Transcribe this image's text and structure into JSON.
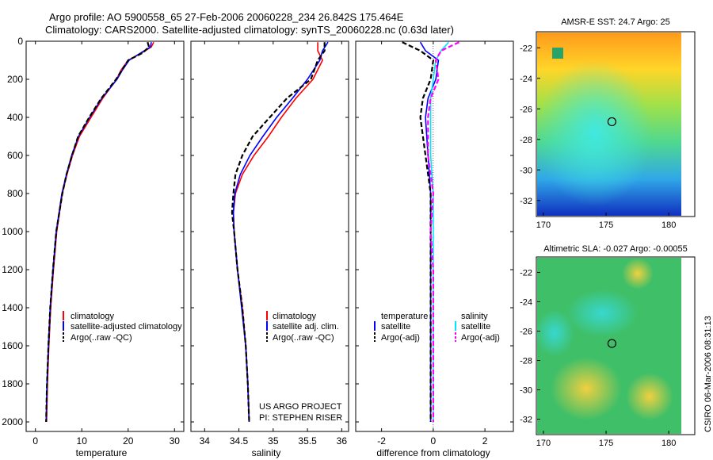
{
  "header": {
    "line1": "Argo profile: AO 5900558_65 27-Feb-2006 20060228_234 26.842S 175.464E",
    "line2": "Climatology: CARS2000. Satellite-adjusted climatology: synTS_20060228.nc (0.63d later)"
  },
  "side_stamp": "CSIRO 06-Mar-2006 08:31:13",
  "project_note": [
    "US ARGO PROJECT",
    "PI: STEPHEN RISER"
  ],
  "colors": {
    "climatology": "#ff0000",
    "satellite": "#0000ff",
    "argo": "#000000",
    "salinity_satellite": "#00e5ff",
    "salinity_argo": "#ff00ff"
  },
  "chart_data": [
    {
      "type": "line",
      "xlabel": "temperature",
      "xlim": [
        -2,
        32
      ],
      "ylim": [
        2050,
        0
      ],
      "xticks": [
        0,
        10,
        20,
        30
      ],
      "yticks": [
        0,
        200,
        400,
        600,
        800,
        1000,
        1200,
        1400,
        1600,
        1800,
        2000
      ],
      "legend": [
        "climatology",
        "satellite-adjusted climatology",
        "Argo(..raw -QC)"
      ],
      "series": [
        {
          "name": "climatology",
          "color": "#ff0000",
          "dash": "solid",
          "depth": [
            5,
            30,
            60,
            100,
            150,
            200,
            300,
            400,
            500,
            600,
            700,
            800,
            1000,
            1200,
            1400,
            1600,
            1800,
            2000
          ],
          "values": [
            25.5,
            25.0,
            23.0,
            20.0,
            18.5,
            17.5,
            14.5,
            12.0,
            9.5,
            8.0,
            6.8,
            5.8,
            4.6,
            3.9,
            3.3,
            2.9,
            2.6,
            2.4
          ]
        },
        {
          "name": "satellite-adjusted climatology",
          "color": "#0000ff",
          "dash": "solid",
          "depth": [
            5,
            30,
            60,
            100,
            150,
            200,
            300,
            400,
            500,
            600,
            700,
            800,
            1000,
            1200,
            1400,
            1600,
            1800,
            2000
          ],
          "values": [
            25.0,
            24.8,
            22.8,
            20.2,
            18.8,
            17.6,
            14.3,
            11.7,
            9.3,
            7.8,
            6.7,
            5.7,
            4.5,
            3.8,
            3.2,
            2.8,
            2.5,
            2.3
          ]
        },
        {
          "name": "Argo(..raw -QC)",
          "color": "#000000",
          "dash": "dashed",
          "depth": [
            5,
            30,
            60,
            100,
            150,
            200,
            300,
            400,
            500,
            600,
            700,
            800,
            1000,
            1200,
            1400,
            1600,
            1800,
            2000
          ],
          "values": [
            24.2,
            24.5,
            23.2,
            20.0,
            18.7,
            17.4,
            14.2,
            11.6,
            9.2,
            7.9,
            6.7,
            5.8,
            4.5,
            3.8,
            3.2,
            2.8,
            2.5,
            2.3
          ]
        }
      ]
    },
    {
      "type": "line",
      "xlabel": "salinity",
      "xlim": [
        33.8,
        36.1
      ],
      "ylim": [
        2050,
        0
      ],
      "xticks": [
        34,
        34.5,
        35,
        35.5,
        36
      ],
      "legend": [
        "climatology",
        "satellite adj. clim.",
        "Argo(..raw -QC)"
      ],
      "series": [
        {
          "name": "climatology",
          "color": "#ff0000",
          "dash": "solid",
          "depth": [
            5,
            50,
            100,
            200,
            300,
            400,
            500,
            600,
            700,
            800,
            900,
            1000,
            1200,
            1400,
            1600,
            1800,
            2000
          ],
          "values": [
            35.65,
            35.65,
            35.72,
            35.58,
            35.33,
            35.12,
            34.93,
            34.72,
            34.55,
            34.45,
            34.42,
            34.43,
            34.48,
            34.55,
            34.6,
            34.63,
            34.65
          ]
        },
        {
          "name": "satellite adj. clim.",
          "color": "#0000ff",
          "dash": "solid",
          "depth": [
            5,
            50,
            100,
            200,
            300,
            400,
            500,
            600,
            700,
            800,
            900,
            1000,
            1200,
            1400,
            1600,
            1800,
            2000
          ],
          "values": [
            35.8,
            35.72,
            35.68,
            35.5,
            35.28,
            35.05,
            34.85,
            34.66,
            34.52,
            34.44,
            34.42,
            34.43,
            34.48,
            34.54,
            34.6,
            34.63,
            34.65
          ]
        },
        {
          "name": "Argo(..raw -QC)",
          "color": "#000000",
          "dash": "dashed",
          "depth": [
            5,
            50,
            100,
            200,
            300,
            400,
            500,
            600,
            700,
            800,
            900,
            1000,
            1200,
            1400,
            1600,
            1800,
            2000
          ],
          "values": [
            35.75,
            35.75,
            35.65,
            35.55,
            35.2,
            34.95,
            34.7,
            34.55,
            34.45,
            34.42,
            34.4,
            34.43,
            34.48,
            34.55,
            34.6,
            34.63,
            34.65
          ]
        }
      ]
    },
    {
      "type": "line",
      "xlabel": "difference from climatology",
      "xlim": [
        -3,
        3.1
      ],
      "ylim": [
        2050,
        0
      ],
      "xticks": [
        -2,
        0,
        2
      ],
      "legend_headers": [
        "temperature",
        "salinity"
      ],
      "legend": [
        "satellite",
        "Argo(-adj)",
        "satellite",
        "Argo(-adj)"
      ],
      "series": [
        {
          "name": "temperature satellite",
          "color": "#0000ff",
          "dash": "solid",
          "depth": [
            5,
            50,
            100,
            200,
            300,
            400,
            600,
            800,
            1000,
            1200,
            1400,
            1600,
            1800,
            2000
          ],
          "values": [
            -0.5,
            -0.3,
            0.2,
            0.1,
            -0.2,
            -0.3,
            -0.2,
            -0.1,
            -0.1,
            -0.1,
            -0.1,
            -0.1,
            -0.1,
            -0.1
          ]
        },
        {
          "name": "temperature Argo(-adj)",
          "color": "#000000",
          "dash": "dashed",
          "depth": [
            5,
            50,
            100,
            200,
            300,
            400,
            600,
            800,
            1000,
            1200,
            1400,
            1600,
            1800,
            2000
          ],
          "values": [
            -1.2,
            -0.5,
            0.0,
            -0.1,
            -0.4,
            -0.5,
            -0.3,
            -0.1,
            -0.1,
            -0.1,
            -0.1,
            -0.1,
            -0.1,
            -0.1
          ]
        },
        {
          "name": "salinity satellite",
          "color": "#00e5ff",
          "dash": "solid",
          "depth": [
            5,
            50,
            100,
            200,
            300,
            400,
            600,
            800,
            1000,
            1200,
            1400,
            1600,
            1800,
            2000
          ],
          "values": [
            0.6,
            0.3,
            0.1,
            0.0,
            -0.1,
            -0.1,
            -0.1,
            0.0,
            0.0,
            0.0,
            0.0,
            0.0,
            0.0,
            0.0
          ]
        },
        {
          "name": "salinity Argo(-adj)",
          "color": "#ff00ff",
          "dash": "dashed",
          "depth": [
            5,
            50,
            100,
            200,
            300,
            400,
            600,
            800,
            1000,
            1200,
            1400,
            1600,
            1800,
            2000
          ],
          "values": [
            1.0,
            0.3,
            0.1,
            0.2,
            -0.1,
            -0.2,
            -0.2,
            0.0,
            -0.1,
            0.0,
            0.0,
            0.0,
            0.0,
            0.0
          ]
        }
      ]
    },
    {
      "type": "heatmap",
      "title": "AMSR-E SST: 24.7 Argo: 25",
      "xlim": [
        169.5,
        181
      ],
      "ylim": [
        -33,
        -21
      ],
      "xticks": [
        170,
        175,
        180
      ],
      "yticks": [
        -22,
        -24,
        -26,
        -28,
        -30,
        -32
      ],
      "marker": {
        "lon": 175.464,
        "lat": -26.842
      }
    },
    {
      "type": "heatmap",
      "title": "Altimetric SLA: -0.027 Argo: -0.00055",
      "xlim": [
        169.5,
        181
      ],
      "ylim": [
        -33,
        -21
      ],
      "xticks": [
        170,
        175,
        180
      ],
      "yticks": [
        -22,
        -24,
        -26,
        -28,
        -30,
        -32
      ],
      "marker": {
        "lon": 175.464,
        "lat": -26.842
      }
    }
  ]
}
